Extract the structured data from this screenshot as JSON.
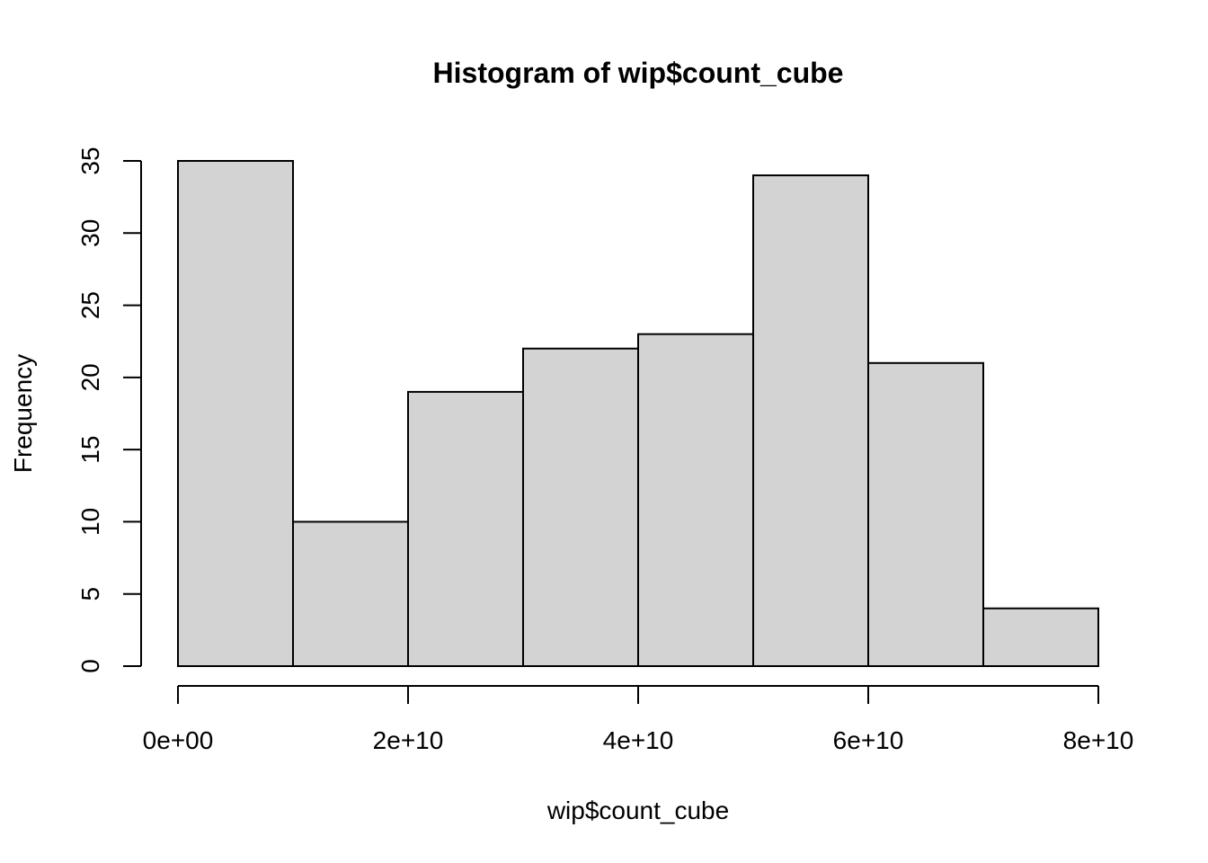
{
  "chart_data": {
    "type": "bar",
    "subtype": "histogram",
    "title": "Histogram of wip$count_cube",
    "xlabel": "wip$count_cube",
    "ylabel": "Frequency",
    "bin_edges": [
      0,
      10000000000.0,
      20000000000.0,
      30000000000.0,
      40000000000.0,
      50000000000.0,
      60000000000.0,
      70000000000.0,
      80000000000.0
    ],
    "values": [
      35,
      10,
      19,
      22,
      23,
      34,
      21,
      4
    ],
    "xlim": [
      0,
      80000000000.0
    ],
    "ylim": [
      0,
      35
    ],
    "x_ticks": [
      {
        "value": 0,
        "label": "0e+00"
      },
      {
        "value": 20000000000.0,
        "label": "2e+10"
      },
      {
        "value": 40000000000.0,
        "label": "4e+10"
      },
      {
        "value": 60000000000.0,
        "label": "6e+10"
      },
      {
        "value": 80000000000.0,
        "label": "8e+10"
      }
    ],
    "y_ticks": [
      {
        "value": 0,
        "label": "0"
      },
      {
        "value": 5,
        "label": "5"
      },
      {
        "value": 10,
        "label": "10"
      },
      {
        "value": 15,
        "label": "15"
      },
      {
        "value": 20,
        "label": "20"
      },
      {
        "value": 25,
        "label": "25"
      },
      {
        "value": 30,
        "label": "30"
      },
      {
        "value": 35,
        "label": "35"
      }
    ],
    "bar_color": "#d3d3d3",
    "grid": false
  }
}
